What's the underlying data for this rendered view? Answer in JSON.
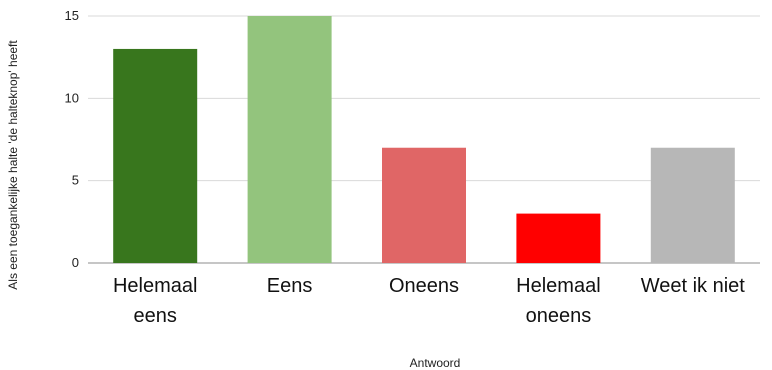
{
  "chart_data": {
    "type": "bar",
    "categories": [
      [
        "Helemaal",
        "eens"
      ],
      [
        "Eens"
      ],
      [
        "Oneens"
      ],
      [
        "Helemaal",
        "oneens"
      ],
      [
        "Weet ik niet"
      ]
    ],
    "values": [
      13,
      15,
      7,
      3,
      7
    ],
    "colors": [
      "#38761d",
      "#93c47d",
      "#e06666",
      "#ff0000",
      "#b7b7b7"
    ],
    "title": "",
    "xlabel": "Antwoord",
    "ylabel": "Als een toegankelijke halte 'de halteknop' heeft",
    "ylim": [
      0,
      15
    ],
    "yticks": [
      0,
      5,
      10,
      15
    ],
    "grid": true
  }
}
